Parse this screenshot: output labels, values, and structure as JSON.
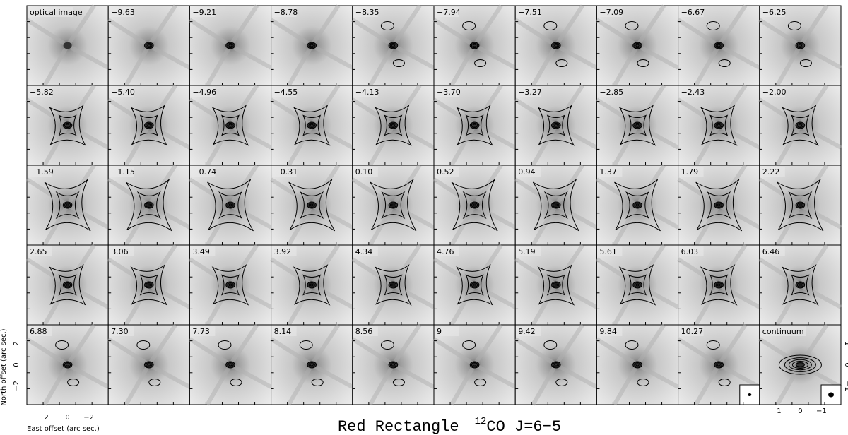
{
  "panels": [
    "optical image",
    "−9.63",
    "−9.21",
    "−8.78",
    "−8.35",
    "−7.94",
    "−7.51",
    "−7.09",
    "−6.67",
    "−6.25",
    "−5.82",
    "−5.40",
    "−4.96",
    "−4.55",
    "−4.13",
    "−3.70",
    "−3.27",
    "−2.85",
    "−2.43",
    "−2.00",
    "−1.59",
    "−1.15",
    "−0.74",
    "−0.31",
    "0.10",
    "0.52",
    "0.94",
    "1.37",
    "1.79",
    "2.22",
    "2.65",
    "3.06",
    "3.49",
    "3.92",
    "4.34",
    "4.76",
    "5.19",
    "5.61",
    "6.03",
    "6.46",
    "6.88",
    "7.30",
    "7.73",
    "8.14",
    "8.56",
    "9",
    "9.42",
    "9.84",
    "10.27",
    "continuum"
  ],
  "axes": {
    "y_label": "North offset (arc sec.)",
    "x_label": "East offset (arc sec.)",
    "left_ticks": [
      "2",
      "0",
      "−2"
    ],
    "bottom_ticks": [
      "2",
      "0",
      "−2"
    ],
    "right_ticks": [
      "1",
      "0",
      "−1"
    ],
    "right_bottom_ticks": [
      "1",
      "0",
      "−1"
    ]
  },
  "title": {
    "main": "Red Rectangle",
    "sup": "12",
    "rest": "CO J=6−5"
  }
}
